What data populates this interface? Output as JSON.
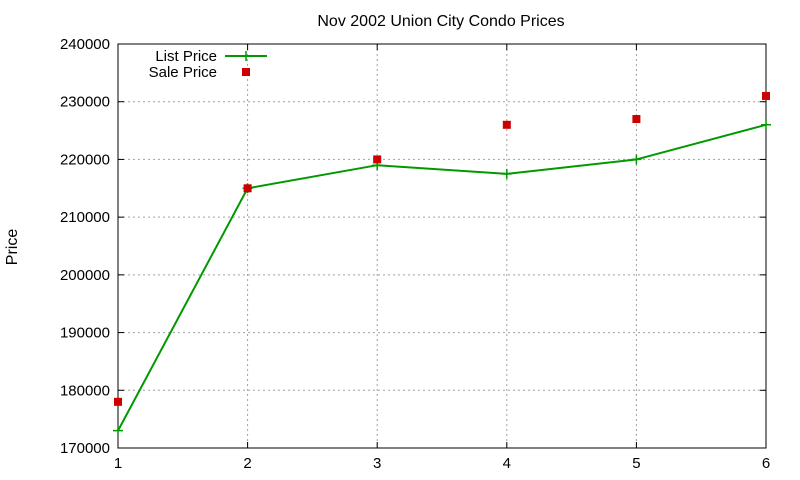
{
  "chart_data": {
    "type": "line",
    "title": "Nov 2002 Union City Condo Prices",
    "xlabel": "",
    "ylabel": "Price",
    "xlim": [
      1,
      6
    ],
    "ylim": [
      170000,
      240000
    ],
    "x_ticks": [
      1,
      2,
      3,
      4,
      5,
      6
    ],
    "y_ticks": [
      170000,
      180000,
      190000,
      200000,
      210000,
      220000,
      230000,
      240000
    ],
    "grid": true,
    "legend_position": "top-left",
    "series": [
      {
        "name": "List Price",
        "style": "line+cross",
        "color": "#009900",
        "x": [
          1,
          2,
          3,
          4,
          5,
          6
        ],
        "values": [
          173000,
          215000,
          219000,
          217500,
          220000,
          226000
        ]
      },
      {
        "name": "Sale Price",
        "style": "square",
        "color": "#cc0000",
        "x": [
          1,
          2,
          3,
          4,
          5,
          6
        ],
        "values": [
          178000,
          215000,
          220000,
          226000,
          227000,
          231000
        ]
      }
    ]
  }
}
